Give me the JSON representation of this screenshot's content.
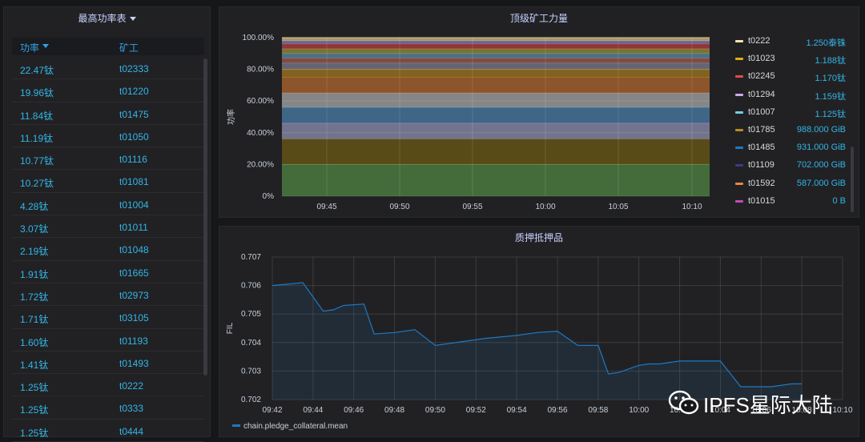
{
  "power_table": {
    "title": "最高功率表",
    "col_power": "功率",
    "col_miner": "矿工",
    "rows": [
      {
        "power": "22.47钛",
        "miner": "t02333"
      },
      {
        "power": "19.96钛",
        "miner": "t01220"
      },
      {
        "power": "11.84钛",
        "miner": "t01475"
      },
      {
        "power": "11.19钛",
        "miner": "t01050"
      },
      {
        "power": "10.77钛",
        "miner": "t01116"
      },
      {
        "power": "10.27钛",
        "miner": "t01081"
      },
      {
        "power": "4.28钛",
        "miner": "t01004"
      },
      {
        "power": "3.07钛",
        "miner": "t01011"
      },
      {
        "power": "2.19钛",
        "miner": "t01048"
      },
      {
        "power": "1.91钛",
        "miner": "t01665"
      },
      {
        "power": "1.72钛",
        "miner": "t02973"
      },
      {
        "power": "1.71钛",
        "miner": "t03105"
      },
      {
        "power": "1.60钛",
        "miner": "t01193"
      },
      {
        "power": "1.41钛",
        "miner": "t01493"
      },
      {
        "power": "1.25钛",
        "miner": "t0222"
      },
      {
        "power": "1.25钛",
        "miner": "t0333"
      },
      {
        "power": "1.25钛",
        "miner": "t0444"
      }
    ]
  },
  "legend": [
    {
      "name": "t0222",
      "value": "1.250泰铢",
      "color": "#f2e6a7"
    },
    {
      "name": "t01023",
      "value": "1.188钛",
      "color": "#e5ac0e"
    },
    {
      "name": "t02245",
      "value": "1.170钛",
      "color": "#e24d42"
    },
    {
      "name": "t01294",
      "value": "1.159钛",
      "color": "#d2a6e8"
    },
    {
      "name": "t01007",
      "value": "1.125钛",
      "color": "#6ed0e0"
    },
    {
      "name": "t01785",
      "value": "988.000 GiB",
      "color": "#ba8a1e"
    },
    {
      "name": "t01485",
      "value": "931.000 GiB",
      "color": "#1f78c1"
    },
    {
      "name": "t01109",
      "value": "702.000 GiB",
      "color": "#3b3b8a"
    },
    {
      "name": "t01592",
      "value": "587.000 GiB",
      "color": "#ef843c"
    },
    {
      "name": "t01015",
      "value": "0 B",
      "color": "#c64ab5"
    }
  ],
  "watermark": "IPFS星际大陆",
  "chart_data": [
    {
      "type": "area",
      "title": "顶级矿工力量",
      "ylabel": "功率",
      "ylim": [
        0,
        100
      ],
      "yticks": [
        "0%",
        "20.00%",
        "40.00%",
        "60.00%",
        "80.00%",
        "100.00%"
      ],
      "xticks": [
        "09:45",
        "09:50",
        "09:55",
        "10:00",
        "10:05",
        "10:10"
      ],
      "stacked": true,
      "band_tops_percent": [
        20,
        36,
        46,
        56,
        65,
        75,
        80,
        84,
        87,
        90,
        93,
        96,
        98,
        100
      ],
      "band_colors": [
        "#508642",
        "#6b5a14",
        "#8f8fb0",
        "#4a7ea8",
        "#a8a8a8",
        "#b0672e",
        "#a07a20",
        "#7c7c8c",
        "#a05a50",
        "#5c8ca0",
        "#9a8c3c",
        "#b04040",
        "#8a7ab0",
        "#d0c080"
      ],
      "grid": true
    },
    {
      "type": "line",
      "title": "质押抵押品",
      "ylabel": "FIL",
      "ylim": [
        0.702,
        0.707
      ],
      "yticks": [
        "0.702",
        "0.703",
        "0.704",
        "0.705",
        "0.706",
        "0.707"
      ],
      "xticks": [
        "09:42",
        "09:44",
        "09:46",
        "09:48",
        "09:50",
        "09:52",
        "09:54",
        "09:56",
        "09:58",
        "10:00",
        "10:02",
        "10:04",
        "10:06",
        "10:08",
        "10:10"
      ],
      "series": [
        {
          "name": "chain.pledge_collateral.mean",
          "color": "#1f78c1",
          "x_minutes": [
            0,
            1.5,
            2.5,
            3,
            3.5,
            4.5,
            5,
            6,
            7,
            8,
            8.5,
            9.5,
            10.5,
            12,
            13,
            14,
            15,
            16,
            16.5,
            17,
            18,
            18.5,
            19,
            20,
            21,
            21.5,
            22,
            23,
            23.5,
            24,
            24.5,
            25.5,
            26
          ],
          "values": [
            0.706,
            0.7061,
            0.7051,
            0.70515,
            0.7053,
            0.70535,
            0.7043,
            0.70435,
            0.70445,
            0.7039,
            0.70395,
            0.70405,
            0.70415,
            0.70425,
            0.70435,
            0.7044,
            0.7039,
            0.7039,
            0.7029,
            0.70295,
            0.7032,
            0.70325,
            0.70325,
            0.70335,
            0.70335,
            0.70335,
            0.70335,
            0.70245,
            0.70245,
            0.70245,
            0.70245,
            0.70255,
            0.70255
          ]
        }
      ],
      "legend_position": "bottom-left",
      "grid": true
    }
  ]
}
